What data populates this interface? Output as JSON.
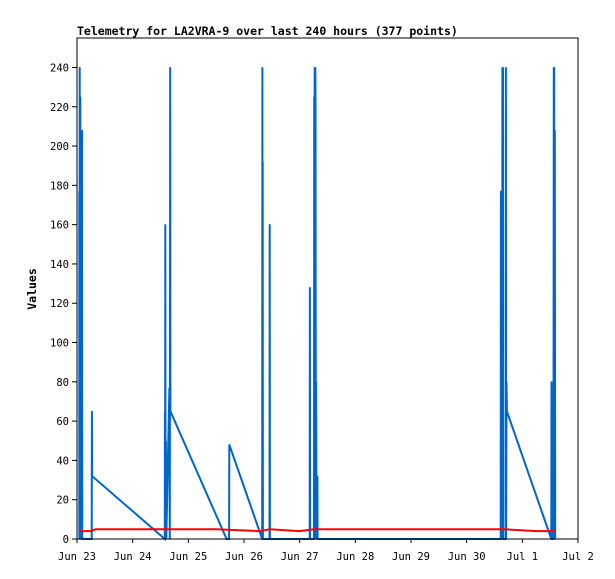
{
  "chart_data": {
    "type": "line",
    "title": "Telemetry for LA2VRA-9 over last 240 hours (377 points)",
    "xlabel": "",
    "ylabel": "Values",
    "ylim": [
      0,
      255
    ],
    "y_ticks": [
      0,
      20,
      40,
      60,
      80,
      100,
      120,
      140,
      160,
      180,
      200,
      220,
      240
    ],
    "xlim": [
      "Jun 23 00:00",
      "Jul 2 00:00"
    ],
    "x_tick_labels": [
      "Jun 23",
      "Jun 24",
      "Jun 25",
      "Jun 26",
      "Jun 27",
      "Jun 28",
      "Jun 29",
      "Jun 30",
      "Jul 1",
      "Jul 2"
    ],
    "grid": false,
    "legend": "none",
    "colors": {
      "blue_series": "#0066cc",
      "red_series": "#ff0000"
    },
    "series": [
      {
        "color": "#0066cc",
        "points": [
          [
            "Jun 23 01:00",
            0
          ],
          [
            "Jun 23 01:00",
            177
          ],
          [
            "Jun 23 01:05",
            0
          ],
          [
            "Jun 23 01:10",
            240
          ],
          [
            "Jun 23 01:15",
            0
          ],
          [
            "Jun 23 01:25",
            225
          ],
          [
            "Jun 23 01:30",
            0
          ],
          [
            "Jun 23 01:40",
            97
          ],
          [
            "Jun 23 01:45",
            0
          ],
          [
            "Jun 23 02:10",
            208
          ],
          [
            "Jun 23 02:15",
            0
          ],
          [
            "Jun 23 06:20",
            0
          ],
          [
            "Jun 23 06:25",
            65
          ],
          [
            "Jun 23 06:30",
            32
          ],
          [
            "Jun 24 13:50",
            0
          ],
          [
            "Jun 24 13:55",
            65
          ],
          [
            "Jun 24 14:00",
            0
          ],
          [
            "Jun 24 14:05",
            160
          ],
          [
            "Jun 24 14:10",
            35
          ],
          [
            "Jun 24 14:20",
            50
          ],
          [
            "Jun 24 14:30",
            0
          ],
          [
            "Jun 24 15:50",
            77
          ],
          [
            "Jun 24 16:00",
            0
          ],
          [
            "Jun 24 16:10",
            240
          ],
          [
            "Jun 24 16:15",
            65
          ],
          [
            "Jun 25 16:30",
            0
          ],
          [
            "Jun 25 17:35",
            0
          ],
          [
            "Jun 25 17:40",
            48
          ],
          [
            "Jun 26 07:50",
            0
          ],
          [
            "Jun 26 07:55",
            240
          ],
          [
            "Jun 26 08:00",
            0
          ],
          [
            "Jun 26 08:05",
            192
          ],
          [
            "Jun 26 08:10",
            0
          ],
          [
            "Jun 26 11:00",
            0
          ],
          [
            "Jun 26 11:05",
            160
          ],
          [
            "Jun 26 11:10",
            0
          ],
          [
            "Jun 27 04:20",
            0
          ],
          [
            "Jun 27 04:25",
            128
          ],
          [
            "Jun 27 04:30",
            0
          ],
          [
            "Jun 27 06:10",
            0
          ],
          [
            "Jun 27 06:15",
            225
          ],
          [
            "Jun 27 06:20",
            180
          ],
          [
            "Jun 27 06:30",
            240
          ],
          [
            "Jun 27 06:35",
            60
          ],
          [
            "Jun 27 06:45",
            240
          ],
          [
            "Jun 27 06:50",
            225
          ],
          [
            "Jun 27 07:00",
            0
          ],
          [
            "Jun 27 07:05",
            80
          ],
          [
            "Jun 27 07:10",
            47
          ],
          [
            "Jun 27 07:15",
            0
          ],
          [
            "Jun 27 07:40",
            32
          ],
          [
            "Jun 27 07:45",
            0
          ],
          [
            "Jun 30 14:40",
            0
          ],
          [
            "Jun 30 14:45",
            177
          ],
          [
            "Jun 30 14:50",
            20
          ],
          [
            "Jun 30 15:00",
            28
          ],
          [
            "Jun 30 15:10",
            0
          ],
          [
            "Jun 30 15:20",
            97
          ],
          [
            "Jun 30 15:25",
            240
          ],
          [
            "Jun 30 15:30",
            0
          ],
          [
            "Jun 30 15:40",
            240
          ],
          [
            "Jun 30 15:45",
            0
          ],
          [
            "Jun 30 16:50",
            0
          ],
          [
            "Jun 30 16:55",
            240
          ],
          [
            "Jun 30 17:00",
            0
          ],
          [
            "Jun 30 17:10",
            80
          ],
          [
            "Jun 30 17:20",
            65
          ],
          [
            "Jul 1 12:30",
            0
          ],
          [
            "Jul 1 12:35",
            80
          ],
          [
            "Jul 1 12:40",
            0
          ],
          [
            "Jul 1 13:20",
            0
          ],
          [
            "Jul 1 13:25",
            48
          ],
          [
            "Jul 1 13:35",
            240
          ],
          [
            "Jul 1 13:40",
            0
          ],
          [
            "Jul 1 13:45",
            240
          ],
          [
            "Jul 1 13:50",
            0
          ],
          [
            "Jul 1 14:00",
            208
          ],
          [
            "Jul 1 14:10",
            0
          ]
        ]
      },
      {
        "color": "#ff0000",
        "points": [
          [
            "Jun 23 01:00",
            4
          ],
          [
            "Jun 23 06:00",
            4
          ],
          [
            "Jun 23 08:00",
            5
          ],
          [
            "Jun 24 16:00",
            5
          ],
          [
            "Jun 25 12:00",
            5
          ],
          [
            "Jun 26 07:00",
            4
          ],
          [
            "Jun 26 11:00",
            5
          ],
          [
            "Jun 27 00:00",
            4
          ],
          [
            "Jun 27 06:00",
            5
          ],
          [
            "Jun 29 00:00",
            5
          ],
          [
            "Jun 30 16:00",
            5
          ],
          [
            "Jul 1 06:00",
            4
          ],
          [
            "Jul 1 14:00",
            4
          ]
        ]
      },
      {
        "color": "#000000",
        "points": [
          [
            "Jun 23 01:00",
            0
          ],
          [
            "Jul 1 14:00",
            0
          ]
        ]
      }
    ]
  }
}
